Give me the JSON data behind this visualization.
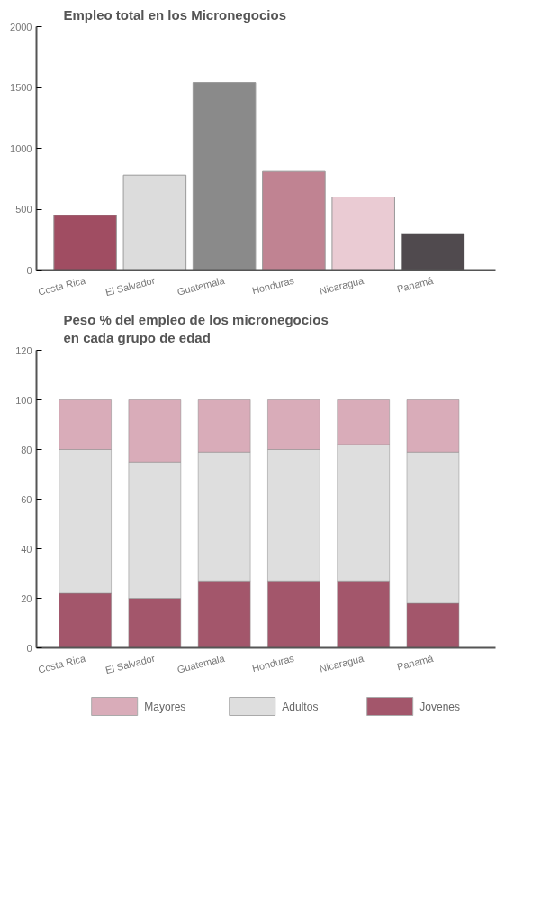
{
  "chart_data": [
    {
      "type": "bar",
      "title": "Empleo total en los Micronegocios",
      "categories": [
        "Costa Rica",
        "El Salvador",
        "Guatemala",
        "Honduras",
        "Nicaragua",
        "Panamá"
      ],
      "values": [
        450,
        780,
        1540,
        810,
        600,
        300
      ],
      "colors": [
        "#a04d62",
        "#dcdcdc",
        "#8a8a8a",
        "#c08392",
        "#eacbd3",
        "#504a4e"
      ],
      "ylim": [
        0,
        2000
      ],
      "yticks": [
        0,
        500,
        1000,
        1500,
        2000
      ],
      "grid": false
    },
    {
      "type": "bar",
      "title": "Peso % del empleo de los micronegocios en cada grupo de edad",
      "stacked": true,
      "categories": [
        "Costa Rica",
        "El Salvador",
        "Guatemala",
        "Honduras",
        "Nicaragua",
        "Panamá"
      ],
      "series": [
        {
          "name": "Jovenes",
          "color": "#a3566b",
          "values": [
            22,
            20,
            27,
            27,
            27,
            18
          ]
        },
        {
          "name": "Adultos",
          "color": "#dedede",
          "values": [
            58,
            55,
            52,
            53,
            55,
            61
          ]
        },
        {
          "name": "Mayores",
          "color": "#d9acb9",
          "values": [
            20,
            25,
            21,
            20,
            18,
            21
          ]
        }
      ],
      "ylim": [
        0,
        120
      ],
      "yticks": [
        0,
        20,
        40,
        60,
        80,
        100,
        120
      ],
      "grid": false,
      "legend": "bottom"
    }
  ]
}
